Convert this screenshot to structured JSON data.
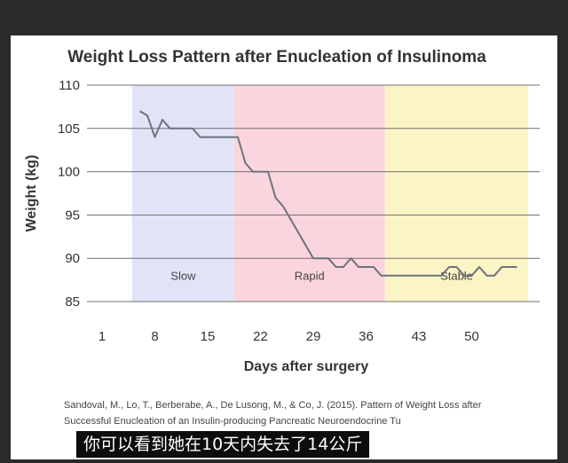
{
  "chart_data": {
    "type": "line",
    "title": "Weight Loss Pattern after Enucleation of Insulinoma",
    "xlabel": "Days after surgery",
    "ylabel": "Weight (kg)",
    "xlim": [
      -1,
      59
    ],
    "ylim": [
      85,
      110
    ],
    "xticks": [
      1,
      8,
      15,
      22,
      29,
      36,
      43,
      50
    ],
    "yticks": [
      85,
      90,
      95,
      100,
      105,
      110
    ],
    "grid": "horizontal",
    "series": [
      {
        "x": [
          6,
          7,
          8,
          9,
          10,
          11,
          12,
          13,
          14,
          15,
          16,
          17,
          18,
          19,
          20,
          21,
          22,
          23,
          24,
          25,
          26,
          27,
          28,
          29,
          30,
          31,
          32,
          33,
          34,
          35,
          36,
          37,
          38,
          39,
          40,
          41,
          42,
          43,
          44,
          45,
          46,
          47,
          48,
          49,
          50,
          51,
          52,
          53,
          54,
          55,
          56
        ],
        "y": [
          107,
          106.5,
          104,
          106,
          105,
          105,
          105,
          105,
          104,
          104,
          104,
          104,
          104,
          104,
          101,
          100,
          100,
          100,
          97,
          96,
          94.5,
          93,
          91.5,
          90,
          90,
          90,
          89,
          89,
          90,
          89,
          89,
          89,
          88,
          88,
          88,
          88,
          88,
          88,
          88,
          88,
          88,
          89,
          89,
          88,
          88,
          89,
          88,
          88,
          89,
          89,
          89
        ]
      }
    ],
    "phases": [
      {
        "label": "Slow",
        "x_start": 5,
        "x_end": 18.5,
        "color": "#e0e4f6"
      },
      {
        "label": "Rapid",
        "x_start": 18.5,
        "x_end": 38.5,
        "color": "#fbd5dd"
      },
      {
        "label": "Stable",
        "x_start": 38.5,
        "x_end": 57.5,
        "color": "#fbf5c6"
      }
    ],
    "line_color": "#6b737d"
  },
  "citation": "Sandoval, M., Lo, T., Berberabe, A., De Lusong, M., & Co, J. (2015). Pattern of Weight Loss after Successful Enucleation of an Insulin-producing Pancreatic Neuroendocrine Tu",
  "subtitle_caption": "你可以看到她在10天内失去了14公斤"
}
